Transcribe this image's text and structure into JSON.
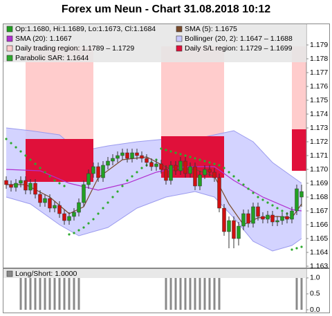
{
  "chart_data": [
    {
      "type": "candlestick",
      "title": "Forex um Neun - Chart 31.08.2018 10:12",
      "ylim": [
        1.1629,
        1.1805
      ],
      "yticks": [
        1.163,
        1.164,
        1.165,
        1.166,
        1.167,
        1.168,
        1.169,
        {
          "value": 1.17,
          "label": "1.170"
        },
        1.171,
        1.172,
        1.173,
        1.174,
        1.175,
        1.176,
        1.177,
        1.178,
        1.179
      ],
      "series": [
        {
          "name": "Op:1.1680, Hi:1.1689, Lo:1.1673, Cl:1.1684",
          "kind": "ohlc",
          "color": "#22a022",
          "down_color": "#d01010",
          "open": [
            1.1692,
            1.1689,
            1.1687,
            1.169,
            1.1692,
            1.1685,
            1.169,
            1.1682,
            1.1676,
            1.1679,
            1.1672,
            1.1674,
            1.1668,
            1.1663,
            1.1666,
            1.1669,
            1.1676,
            1.1689,
            1.1697,
            1.1702,
            1.1694,
            1.1703,
            1.1706,
            1.1708,
            1.171,
            1.1712,
            1.1708,
            1.1712,
            1.171,
            1.1708,
            1.1705,
            1.1702,
            1.1704,
            1.17,
            1.1692,
            1.1703,
            1.1699,
            1.1706,
            1.1697,
            1.1702,
            1.1688,
            1.1696,
            1.17,
            1.1698,
            1.1694,
            1.1672,
            1.1655,
            1.1663,
            1.165,
            1.1659,
            1.1668,
            1.1661,
            1.1673,
            1.1666,
            1.1664,
            1.1667,
            1.1662,
            1.1663,
            1.1666,
            1.1664,
            1.167,
            1.168
          ],
          "high": [
            1.1695,
            1.1692,
            1.1693,
            1.1695,
            1.1695,
            1.1693,
            1.1693,
            1.1685,
            1.1682,
            1.1682,
            1.1677,
            1.1677,
            1.1671,
            1.1669,
            1.1672,
            1.1679,
            1.1692,
            1.17,
            1.1705,
            1.1705,
            1.1706,
            1.1709,
            1.1711,
            1.1713,
            1.1715,
            1.1715,
            1.1715,
            1.1715,
            1.1713,
            1.1711,
            1.1708,
            1.1707,
            1.1707,
            1.1703,
            1.1706,
            1.1706,
            1.1709,
            1.1709,
            1.1705,
            1.1705,
            1.1699,
            1.1703,
            1.1703,
            1.1701,
            1.1697,
            1.1675,
            1.1666,
            1.1666,
            1.1662,
            1.1671,
            1.1671,
            1.1676,
            1.1676,
            1.1669,
            1.167,
            1.167,
            1.1666,
            1.1669,
            1.1669,
            1.1673,
            1.1689,
            1.1689
          ],
          "low": [
            1.1686,
            1.1684,
            1.1684,
            1.1687,
            1.1682,
            1.1682,
            1.1679,
            1.1673,
            1.1673,
            1.1669,
            1.1669,
            1.1665,
            1.166,
            1.166,
            1.1663,
            1.1666,
            1.1673,
            1.1686,
            1.1694,
            1.1691,
            1.1691,
            1.17,
            1.1703,
            1.1705,
            1.1707,
            1.1705,
            1.1705,
            1.1707,
            1.1705,
            1.1702,
            1.1699,
            1.1699,
            1.1697,
            1.1689,
            1.1689,
            1.1696,
            1.1696,
            1.1694,
            1.1694,
            1.1685,
            1.1685,
            1.1693,
            1.1695,
            1.1691,
            1.1669,
            1.1652,
            1.1643,
            1.1643,
            1.1645,
            1.1656,
            1.1658,
            1.1658,
            1.1663,
            1.1661,
            1.1661,
            1.1659,
            1.1659,
            1.166,
            1.1661,
            1.1661,
            1.1667,
            1.1673
          ],
          "close": [
            1.1689,
            1.1687,
            1.169,
            1.1692,
            1.1685,
            1.169,
            1.1682,
            1.1676,
            1.1679,
            1.1672,
            1.1674,
            1.1668,
            1.1663,
            1.1666,
            1.1669,
            1.1676,
            1.1689,
            1.1697,
            1.1702,
            1.1694,
            1.1703,
            1.1706,
            1.1708,
            1.171,
            1.1712,
            1.1708,
            1.1712,
            1.171,
            1.1708,
            1.1705,
            1.1702,
            1.1704,
            1.17,
            1.1692,
            1.1703,
            1.1699,
            1.1706,
            1.1697,
            1.1702,
            1.1688,
            1.1696,
            1.17,
            1.1698,
            1.1694,
            1.1672,
            1.1655,
            1.1663,
            1.165,
            1.1659,
            1.1668,
            1.1661,
            1.1673,
            1.1666,
            1.1664,
            1.1667,
            1.1662,
            1.1663,
            1.1666,
            1.1664,
            1.167,
            1.1686,
            1.1684
          ]
        },
        {
          "name": "SMA (5): 1.1675",
          "kind": "line",
          "color": "#7a4a2a",
          "x": [
            1,
            5,
            10,
            14,
            17,
            20,
            25,
            30,
            35,
            40,
            44,
            47,
            50,
            53,
            57,
            60,
            62
          ],
          "values": [
            1.1689,
            1.1689,
            1.168,
            1.1668,
            1.1673,
            1.1694,
            1.1707,
            1.1709,
            1.17,
            1.17,
            1.1695,
            1.1675,
            1.166,
            1.1665,
            1.1666,
            1.1665,
            1.1675
          ]
        },
        {
          "name": "SMA (20): 1.1667",
          "kind": "line",
          "color": "#b030d0",
          "x": [
            1,
            8,
            14,
            20,
            26,
            32,
            38,
            44,
            48,
            54,
            60,
            62
          ],
          "values": [
            1.17,
            1.1699,
            1.169,
            1.1685,
            1.169,
            1.1698,
            1.1702,
            1.1702,
            1.1692,
            1.168,
            1.1671,
            1.167
          ]
        },
        {
          "name": "Bollinger (20, 2): 1.1647 – 1.1688",
          "kind": "band",
          "color": "#c8c8ff",
          "x": [
            1,
            6,
            12,
            16,
            22,
            28,
            34,
            40,
            44,
            48,
            52,
            56,
            60,
            62
          ],
          "upper": [
            1.173,
            1.1728,
            1.1725,
            1.1713,
            1.1717,
            1.172,
            1.1722,
            1.1722,
            1.1725,
            1.1728,
            1.172,
            1.1705,
            1.1695,
            1.169
          ],
          "lower": [
            1.168,
            1.1675,
            1.166,
            1.1652,
            1.1658,
            1.1672,
            1.168,
            1.1684,
            1.168,
            1.1665,
            1.1648,
            1.1641,
            1.1645,
            1.165
          ]
        },
        {
          "name": "Daily trading region: 1.1789 – 1.1729",
          "kind": "region",
          "color": "#ffcccc",
          "regions": [
            {
              "x": [
                5,
                19
              ],
              "high": 1.1789,
              "low": 1.1722
            },
            {
              "x": [
                33,
                46
              ],
              "high": 1.1789,
              "low": 1.1724
            },
            {
              "x": [
                60,
                63
              ],
              "high": 1.1789,
              "low": 1.1729
            }
          ]
        },
        {
          "name": "Daily S/L region: 1.1729 – 1.1699",
          "kind": "region",
          "color": "#e0103a",
          "regions": [
            {
              "x": [
                5,
                19
              ],
              "high": 1.1722,
              "low": 1.1691
            },
            {
              "x": [
                33,
                46
              ],
              "high": 1.1724,
              "low": 1.1694
            },
            {
              "x": [
                60,
                63
              ],
              "high": 1.1729,
              "low": 1.1699
            }
          ]
        },
        {
          "name": "Parabolic SAR: 1.1644",
          "kind": "dots",
          "color": "#2eaa2e",
          "values": [
            1.1722,
            1.1719,
            1.1716,
            1.1713,
            1.171,
            1.1707,
            1.1704,
            1.1701,
            1.1698,
            1.1695,
            1.1692,
            1.169,
            1.1688,
            1.1653,
            1.1654,
            1.1656,
            1.1658,
            1.1661,
            1.1664,
            1.1668,
            1.1672,
            1.1676,
            1.168,
            1.1684,
            1.1688,
            1.1692,
            1.1695,
            1.1698,
            1.1701,
            1.1703,
            1.1705,
            1.1707,
            1.1715,
            1.1714,
            1.1713,
            1.1712,
            1.1711,
            1.171,
            1.1709,
            1.1708,
            1.1707,
            1.1706,
            1.1705,
            1.1704,
            1.1703,
            1.1701,
            1.1698,
            1.1695,
            1.1692,
            1.1689,
            1.1686,
            1.1683,
            1.168,
            1.1678,
            1.1676,
            1.1674,
            1.1672,
            1.167,
            1.1668,
            1.1642,
            1.1643,
            1.1644
          ]
        }
      ]
    },
    {
      "type": "bar",
      "name": "Long/Short: 1.0000",
      "color": "#8a8a8a",
      "ylim": [
        0,
        1.28
      ],
      "yticks": [
        {
          "value": 0,
          "label": "0.0"
        },
        {
          "value": 0.5,
          "label": "0.5"
        },
        {
          "value": 1,
          "label": "1.0"
        }
      ],
      "values": [
        0,
        0,
        0,
        1,
        1,
        1,
        1,
        1,
        1,
        1,
        1,
        1,
        1,
        1,
        1,
        1,
        0,
        0,
        0,
        0,
        0,
        0,
        0,
        0,
        0,
        0,
        0,
        0,
        0,
        0,
        0,
        0,
        0,
        1,
        1,
        1,
        1,
        1,
        1,
        1,
        1,
        1,
        1,
        1,
        1,
        0,
        0,
        0,
        0,
        0,
        0,
        0,
        0,
        0,
        0,
        0,
        0,
        0,
        0,
        0,
        1,
        1
      ]
    }
  ]
}
